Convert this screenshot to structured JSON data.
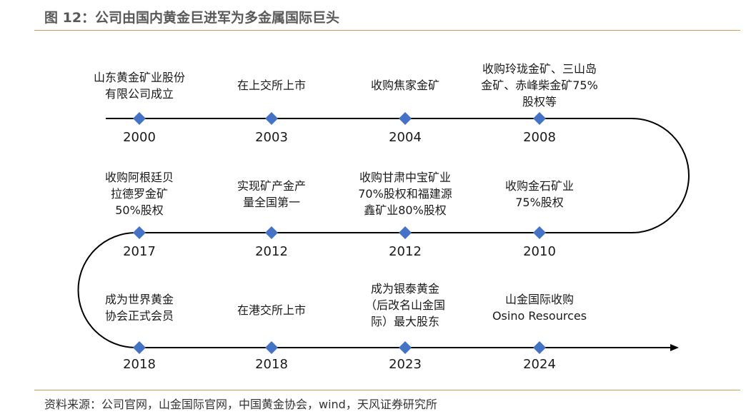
{
  "title": "图 12：公司由国内黄金巨进军为多金属国际巨头",
  "source": "资料来源：公司官网，山金国际官网，中国黄金协会，wind，天风证券研究所",
  "colors": {
    "line": "#000000",
    "marker": "#4472c4",
    "rule": "#c9a35a"
  },
  "rows": [
    {
      "events": [
        {
          "year": "2000",
          "text": "山东黄金矿业股份\n有限公司成立"
        },
        {
          "year": "2003",
          "text": "在上交所上市"
        },
        {
          "year": "2004",
          "text": "收购焦家金矿"
        },
        {
          "year": "2008",
          "text": "收购玲珑金矿、三山岛\n金矿、赤峰柴金矿75%\n股权等"
        }
      ]
    },
    {
      "events": [
        {
          "year": "2017",
          "text": "收购阿根廷贝\n拉德罗金矿\n50%股权"
        },
        {
          "year": "2012",
          "text": "实现矿产金产\n量全国第一"
        },
        {
          "year": "2012",
          "text": "收购甘肃中宝矿业\n70%股权和福建源\n鑫矿业80%股权"
        },
        {
          "year": "2010",
          "text": "收购金石矿业\n75%股权"
        }
      ]
    },
    {
      "events": [
        {
          "year": "2018",
          "text": "成为世界黄金\n协会正式会员"
        },
        {
          "year": "2018",
          "text": "在港交所上市"
        },
        {
          "year": "2023",
          "text": "成为银泰黄金\n（后改名山金国\n际）最大股东"
        },
        {
          "year": "2024",
          "text": "山金国际收购\nOsino Resources"
        }
      ]
    }
  ]
}
